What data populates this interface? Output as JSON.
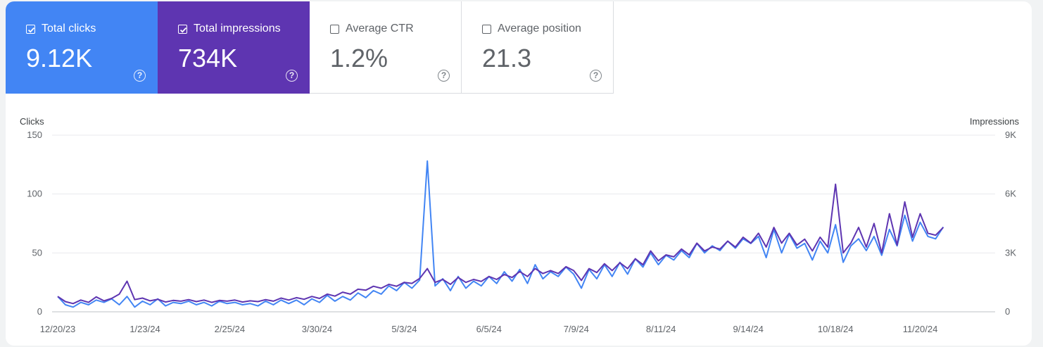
{
  "metrics": [
    {
      "label": "Total clicks",
      "value": "9.12K",
      "checked": true
    },
    {
      "label": "Total impressions",
      "value": "734K",
      "checked": true
    },
    {
      "label": "Average CTR",
      "value": "1.2%",
      "checked": false
    },
    {
      "label": "Average position",
      "value": "21.3",
      "checked": false
    }
  ],
  "chart_data": {
    "type": "line",
    "left_axis_title": "Clicks",
    "right_axis_title": "Impressions",
    "left_ticks": [
      "0",
      "50",
      "100",
      "150"
    ],
    "right_ticks": [
      "0",
      "3K",
      "6K",
      "9K"
    ],
    "ylim_left": [
      0,
      150
    ],
    "ylim_right": [
      0,
      9000
    ],
    "x_ticks": [
      "12/20/23",
      "1/23/24",
      "2/25/24",
      "3/30/24",
      "5/3/24",
      "6/5/24",
      "7/9/24",
      "8/11/24",
      "9/14/24",
      "10/18/24",
      "11/20/24"
    ],
    "x_range": [
      "2023-12-20",
      "2024-12-17"
    ],
    "grid": true,
    "colors": {
      "clicks": "#4285f4",
      "impressions": "#5e35b1"
    },
    "series": [
      {
        "name": "Clicks",
        "axis": "left",
        "color": "#4285f4",
        "x_start": "2023-12-20",
        "x_step_days": 3,
        "values": [
          13,
          6,
          4,
          8,
          6,
          10,
          8,
          11,
          6,
          13,
          4,
          9,
          6,
          11,
          5,
          8,
          7,
          9,
          6,
          8,
          5,
          9,
          7,
          8,
          6,
          7,
          5,
          9,
          6,
          10,
          7,
          10,
          6,
          11,
          8,
          14,
          9,
          13,
          10,
          16,
          12,
          18,
          15,
          22,
          18,
          25,
          20,
          27,
          128,
          22,
          28,
          18,
          30,
          20,
          26,
          22,
          30,
          24,
          34,
          26,
          36,
          24,
          40,
          28,
          34,
          30,
          38,
          32,
          20,
          36,
          28,
          40,
          30,
          42,
          32,
          45,
          38,
          50,
          40,
          48,
          44,
          52,
          46,
          58,
          50,
          56,
          52,
          60,
          54,
          62,
          58,
          64,
          46,
          70,
          50,
          66,
          54,
          58,
          44,
          60,
          50,
          74,
          42,
          56,
          62,
          52,
          64,
          48,
          70,
          56,
          82,
          60,
          76,
          64,
          62,
          72
        ]
      },
      {
        "name": "Impressions",
        "axis": "right",
        "color": "#5e35b1",
        "x_start": "2023-12-20",
        "x_step_days": 3,
        "values": [
          780,
          520,
          420,
          600,
          480,
          760,
          560,
          680,
          900,
          1560,
          620,
          700,
          560,
          640,
          500,
          580,
          540,
          620,
          520,
          600,
          480,
          580,
          540,
          600,
          500,
          560,
          520,
          620,
          540,
          700,
          600,
          720,
          640,
          780,
          680,
          900,
          800,
          1000,
          900,
          1150,
          1100,
          1300,
          1200,
          1400,
          1300,
          1500,
          1450,
          1700,
          2200,
          1500,
          1650,
          1400,
          1750,
          1500,
          1650,
          1550,
          1800,
          1650,
          1900,
          1750,
          2050,
          1800,
          2200,
          1950,
          2100,
          1950,
          2300,
          2100,
          1600,
          2200,
          2000,
          2450,
          2100,
          2500,
          2200,
          2700,
          2400,
          3100,
          2600,
          2900,
          2800,
          3200,
          2900,
          3500,
          3100,
          3300,
          3200,
          3600,
          3300,
          3800,
          3500,
          4000,
          3300,
          4300,
          3500,
          4000,
          3400,
          3700,
          3100,
          3800,
          3300,
          6500,
          3000,
          3500,
          4300,
          3300,
          4500,
          3000,
          5000,
          3400,
          5600,
          3800,
          5000,
          4000,
          3900,
          4300
        ]
      }
    ]
  }
}
